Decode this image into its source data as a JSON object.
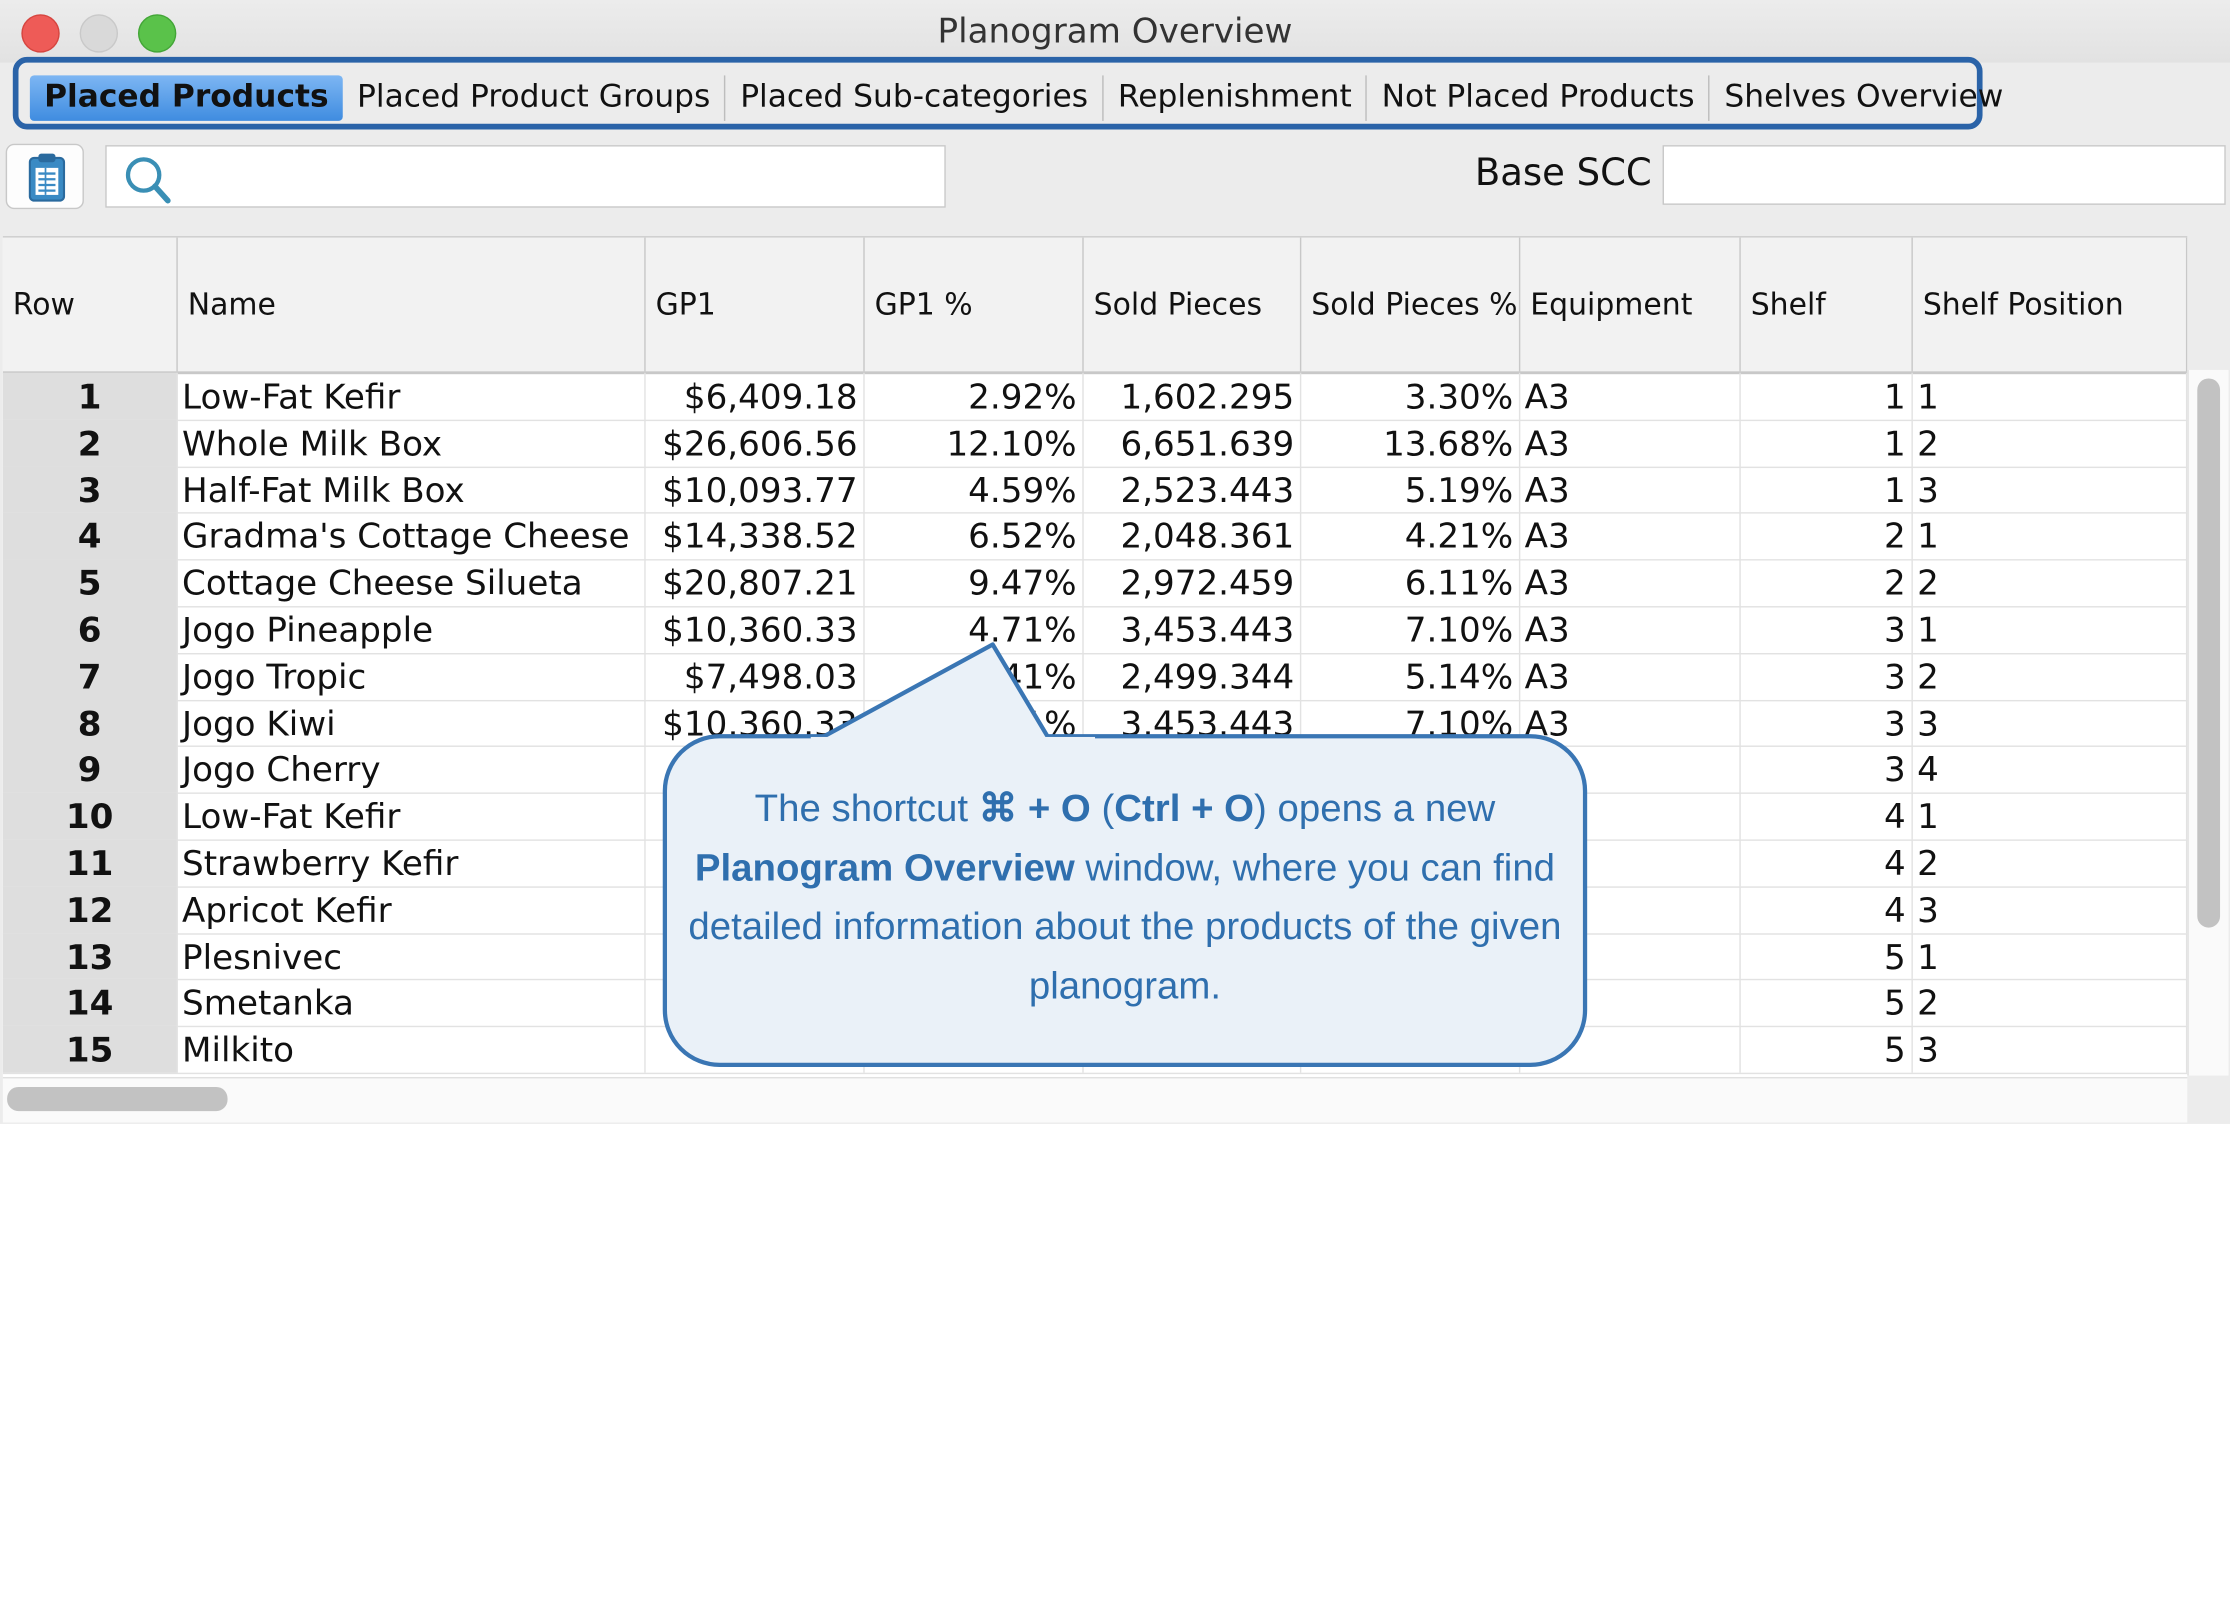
{
  "window": {
    "title": "Planogram Overview"
  },
  "tabs": [
    {
      "label": "Placed Products"
    },
    {
      "label": "Placed Product Groups"
    },
    {
      "label": "Placed Sub-categories"
    },
    {
      "label": "Replenishment"
    },
    {
      "label": "Not Placed Products"
    },
    {
      "label": "Shelves Overview"
    }
  ],
  "toolbar": {
    "search_value": "",
    "base_scc_label": "Base SCC",
    "base_scc_value": ""
  },
  "table": {
    "columns": [
      "Row",
      "Name",
      "GP1",
      "GP1 %",
      "Sold Pieces",
      "Sold Pieces %",
      "Equipment",
      "Shelf",
      "Shelf Position"
    ],
    "rows": [
      [
        "1",
        "Low-Fat Kefir",
        "$6,409.18",
        "2.92%",
        "1,602.295",
        "3.30%",
        "A3",
        "1",
        "1"
      ],
      [
        "2",
        "Whole Milk Box",
        "$26,606.56",
        "12.10%",
        "6,651.639",
        "13.68%",
        "A3",
        "1",
        "2"
      ],
      [
        "3",
        "Half-Fat Milk Box",
        "$10,093.77",
        "4.59%",
        "2,523.443",
        "5.19%",
        "A3",
        "1",
        "3"
      ],
      [
        "4",
        "Gradma's Cottage Cheese",
        "$14,338.52",
        "6.52%",
        "2,048.361",
        "4.21%",
        "A3",
        "2",
        "1"
      ],
      [
        "5",
        "Cottage Cheese Silueta",
        "$20,807.21",
        "9.47%",
        "2,972.459",
        "6.11%",
        "A3",
        "2",
        "2"
      ],
      [
        "6",
        "Jogo Pineapple",
        "$10,360.33",
        "4.71%",
        "3,453.443",
        "7.10%",
        "A3",
        "3",
        "1"
      ],
      [
        "7",
        "Jogo Tropic",
        "$7,498.03",
        "3.41%",
        "2,499.344",
        "5.14%",
        "A3",
        "3",
        "2"
      ],
      [
        "8",
        "Jogo Kiwi",
        "$10,360.33",
        "4.71%",
        "3,453.443",
        "7.10%",
        "A3",
        "3",
        "3"
      ],
      [
        "9",
        "Jogo Cherry",
        "$",
        "",
        "",
        "",
        "",
        "3",
        "4"
      ],
      [
        "10",
        "Low-Fat Kefir",
        "",
        "",
        "",
        "",
        "",
        "4",
        "1"
      ],
      [
        "11",
        "Strawberry Kefir",
        "",
        "",
        "",
        "",
        "",
        "4",
        "2"
      ],
      [
        "12",
        "Apricot Kefir",
        "",
        "",
        "",
        "",
        "",
        "4",
        "3"
      ],
      [
        "13",
        "Plesnivec",
        "",
        "",
        "",
        "",
        "",
        "5",
        "1"
      ],
      [
        "14",
        "Smetanka",
        "$",
        "",
        "",
        "",
        "",
        "5",
        "2"
      ],
      [
        "15",
        "Milkito",
        "$",
        "",
        "",
        "",
        "",
        "5",
        "3"
      ]
    ]
  },
  "callout": {
    "part1": "The shortcut ",
    "shortcut_mac": "⌘ + O",
    "part2": " (",
    "shortcut_win": "Ctrl + O",
    "part3": ") opens a new ",
    "window_name": "Planogram Overview",
    "part4": " window, where you can find detailed information about the products of the given planogram."
  },
  "icons": {
    "toolbar": "clipboard-list-icon",
    "search": "search-icon"
  },
  "colors": {
    "accent": "#2a63a8",
    "tab_active": "#4a93e3",
    "callout_text": "#2f6fae",
    "callout_bg": "#eaf1f8"
  }
}
